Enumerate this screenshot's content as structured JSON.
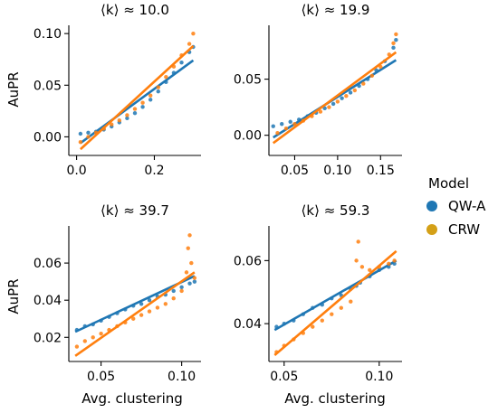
{
  "legend": {
    "title": "Model",
    "entries": [
      {
        "label": "QW-A",
        "color": "#1f77b4"
      },
      {
        "label": "CRW",
        "color": "#ff7f0e"
      }
    ]
  },
  "shared_labels": {
    "ylabel": "AuPR",
    "xlabel": "Avg. clustering"
  },
  "chart_data": [
    {
      "type": "scatter",
      "title": "⟨k⟩ ≈ 10.0",
      "xlim": [
        -0.02,
        0.32
      ],
      "ylim": [
        -0.018,
        0.108
      ],
      "xticks": [
        0.0,
        0.2
      ],
      "xtick_labels": [
        "0.0",
        "0.2"
      ],
      "yticks": [
        0.0,
        0.05,
        0.1
      ],
      "ytick_labels": [
        "0.00",
        "0.05",
        "0.10"
      ],
      "series": [
        {
          "name": "QW-A",
          "color": "#1f77b4",
          "points": [
            [
              0.01,
              0.003
            ],
            [
              0.03,
              0.004
            ],
            [
              0.05,
              0.005
            ],
            [
              0.07,
              0.007
            ],
            [
              0.09,
              0.01
            ],
            [
              0.11,
              0.014
            ],
            [
              0.13,
              0.018
            ],
            [
              0.15,
              0.023
            ],
            [
              0.17,
              0.029
            ],
            [
              0.19,
              0.036
            ],
            [
              0.21,
              0.044
            ],
            [
              0.23,
              0.053
            ],
            [
              0.25,
              0.062
            ],
            [
              0.27,
              0.072
            ],
            [
              0.29,
              0.082
            ],
            [
              0.3,
              0.087
            ]
          ],
          "fit": [
            [
              0.01,
              -0.006
            ],
            [
              0.3,
              0.074
            ]
          ]
        },
        {
          "name": "CRW",
          "color": "#ff7f0e",
          "points": [
            [
              0.01,
              -0.005
            ],
            [
              0.03,
              0.0
            ],
            [
              0.05,
              0.004
            ],
            [
              0.07,
              0.008
            ],
            [
              0.09,
              0.012
            ],
            [
              0.11,
              0.016
            ],
            [
              0.13,
              0.021
            ],
            [
              0.15,
              0.027
            ],
            [
              0.17,
              0.033
            ],
            [
              0.19,
              0.04
            ],
            [
              0.21,
              0.048
            ],
            [
              0.23,
              0.058
            ],
            [
              0.25,
              0.068
            ],
            [
              0.27,
              0.079
            ],
            [
              0.29,
              0.09
            ],
            [
              0.3,
              0.1
            ]
          ],
          "fit": [
            [
              0.01,
              -0.012
            ],
            [
              0.3,
              0.088
            ]
          ]
        }
      ]
    },
    {
      "type": "scatter",
      "title": "⟨k⟩ ≈ 19.9",
      "xlim": [
        0.02,
        0.175
      ],
      "ylim": [
        -0.018,
        0.098
      ],
      "xticks": [
        0.05,
        0.1,
        0.15
      ],
      "xtick_labels": [
        "0.05",
        "0.10",
        "0.15"
      ],
      "yticks": [
        0.0,
        0.05
      ],
      "ytick_labels": [
        "0.00",
        "0.05"
      ],
      "series": [
        {
          "name": "QW-A",
          "color": "#1f77b4",
          "points": [
            [
              0.025,
              0.008
            ],
            [
              0.035,
              0.01
            ],
            [
              0.045,
              0.012
            ],
            [
              0.055,
              0.014
            ],
            [
              0.065,
              0.017
            ],
            [
              0.075,
              0.02
            ],
            [
              0.085,
              0.024
            ],
            [
              0.095,
              0.028
            ],
            [
              0.105,
              0.033
            ],
            [
              0.115,
              0.038
            ],
            [
              0.125,
              0.044
            ],
            [
              0.135,
              0.05
            ],
            [
              0.145,
              0.058
            ],
            [
              0.155,
              0.066
            ],
            [
              0.165,
              0.078
            ],
            [
              0.168,
              0.085
            ]
          ],
          "fit": [
            [
              0.025,
              -0.002
            ],
            [
              0.168,
              0.067
            ]
          ]
        },
        {
          "name": "CRW",
          "color": "#ff7f0e",
          "points": [
            [
              0.03,
              0.002
            ],
            [
              0.04,
              0.006
            ],
            [
              0.05,
              0.01
            ],
            [
              0.06,
              0.013
            ],
            [
              0.07,
              0.017
            ],
            [
              0.08,
              0.021
            ],
            [
              0.09,
              0.025
            ],
            [
              0.1,
              0.03
            ],
            [
              0.11,
              0.035
            ],
            [
              0.12,
              0.04
            ],
            [
              0.13,
              0.046
            ],
            [
              0.14,
              0.053
            ],
            [
              0.15,
              0.061
            ],
            [
              0.16,
              0.072
            ],
            [
              0.165,
              0.082
            ],
            [
              0.168,
              0.09
            ]
          ],
          "fit": [
            [
              0.025,
              -0.007
            ],
            [
              0.168,
              0.074
            ]
          ]
        }
      ]
    },
    {
      "type": "scatter",
      "title": "⟨k⟩ ≈ 39.7",
      "xlim": [
        0.03,
        0.112
      ],
      "ylim": [
        0.007,
        0.08
      ],
      "xticks": [
        0.05,
        0.1
      ],
      "xtick_labels": [
        "0.05",
        "0.10"
      ],
      "yticks": [
        0.02,
        0.04,
        0.06
      ],
      "ytick_labels": [
        "0.02",
        "0.04",
        "0.06"
      ],
      "series": [
        {
          "name": "QW-A",
          "color": "#1f77b4",
          "points": [
            [
              0.035,
              0.024
            ],
            [
              0.04,
              0.026
            ],
            [
              0.045,
              0.027
            ],
            [
              0.05,
              0.029
            ],
            [
              0.055,
              0.031
            ],
            [
              0.06,
              0.033
            ],
            [
              0.065,
              0.035
            ],
            [
              0.07,
              0.037
            ],
            [
              0.075,
              0.038
            ],
            [
              0.08,
              0.04
            ],
            [
              0.085,
              0.042
            ],
            [
              0.09,
              0.043
            ],
            [
              0.095,
              0.045
            ],
            [
              0.1,
              0.047
            ],
            [
              0.105,
              0.049
            ],
            [
              0.108,
              0.05
            ]
          ],
          "fit": [
            [
              0.034,
              0.023
            ],
            [
              0.108,
              0.053
            ]
          ]
        },
        {
          "name": "CRW",
          "color": "#ff7f0e",
          "points": [
            [
              0.035,
              0.015
            ],
            [
              0.04,
              0.018
            ],
            [
              0.045,
              0.02
            ],
            [
              0.05,
              0.022
            ],
            [
              0.055,
              0.024
            ],
            [
              0.06,
              0.026
            ],
            [
              0.065,
              0.028
            ],
            [
              0.07,
              0.03
            ],
            [
              0.075,
              0.032
            ],
            [
              0.08,
              0.034
            ],
            [
              0.085,
              0.036
            ],
            [
              0.09,
              0.038
            ],
            [
              0.095,
              0.041
            ],
            [
              0.1,
              0.045
            ],
            [
              0.103,
              0.055
            ],
            [
              0.104,
              0.068
            ],
            [
              0.105,
              0.075
            ],
            [
              0.106,
              0.06
            ],
            [
              0.108,
              0.052
            ]
          ],
          "fit": [
            [
              0.034,
              0.01
            ],
            [
              0.108,
              0.055
            ]
          ]
        }
      ]
    },
    {
      "type": "scatter",
      "title": "⟨k⟩ ≈ 59.3",
      "xlim": [
        0.042,
        0.112
      ],
      "ylim": [
        0.028,
        0.071
      ],
      "xticks": [
        0.05,
        0.1
      ],
      "xtick_labels": [
        "0.05",
        "0.10"
      ],
      "yticks": [
        0.04,
        0.06
      ],
      "ytick_labels": [
        "0.04",
        "0.06"
      ],
      "series": [
        {
          "name": "QW-A",
          "color": "#1f77b4",
          "points": [
            [
              0.046,
              0.039
            ],
            [
              0.05,
              0.04
            ],
            [
              0.055,
              0.041
            ],
            [
              0.06,
              0.043
            ],
            [
              0.065,
              0.045
            ],
            [
              0.07,
              0.046
            ],
            [
              0.075,
              0.048
            ],
            [
              0.08,
              0.049
            ],
            [
              0.085,
              0.051
            ],
            [
              0.088,
              0.052
            ],
            [
              0.09,
              0.053
            ],
            [
              0.095,
              0.055
            ],
            [
              0.1,
              0.057
            ],
            [
              0.105,
              0.058
            ],
            [
              0.108,
              0.059
            ]
          ],
          "fit": [
            [
              0.045,
              0.038
            ],
            [
              0.109,
              0.06
            ]
          ]
        },
        {
          "name": "CRW",
          "color": "#ff7f0e",
          "points": [
            [
              0.046,
              0.031
            ],
            [
              0.05,
              0.033
            ],
            [
              0.055,
              0.035
            ],
            [
              0.06,
              0.037
            ],
            [
              0.065,
              0.039
            ],
            [
              0.07,
              0.041
            ],
            [
              0.075,
              0.043
            ],
            [
              0.08,
              0.045
            ],
            [
              0.085,
              0.047
            ],
            [
              0.088,
              0.06
            ],
            [
              0.089,
              0.066
            ],
            [
              0.091,
              0.058
            ],
            [
              0.095,
              0.057
            ],
            [
              0.1,
              0.058
            ],
            [
              0.105,
              0.059
            ],
            [
              0.108,
              0.06
            ]
          ],
          "fit": [
            [
              0.045,
              0.03
            ],
            [
              0.109,
              0.063
            ]
          ]
        }
      ]
    }
  ]
}
